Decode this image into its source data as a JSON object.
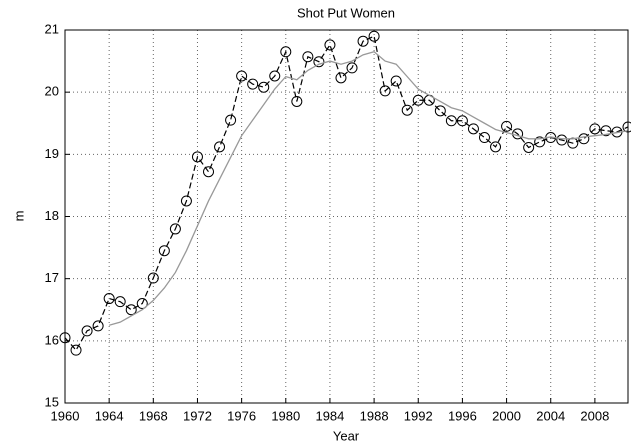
{
  "chart_data": {
    "type": "line",
    "title": "Shot Put Women",
    "xlabel": "Year",
    "ylabel": "m",
    "x": [
      1960,
      1961,
      1962,
      1963,
      1964,
      1965,
      1966,
      1967,
      1968,
      1969,
      1970,
      1971,
      1972,
      1973,
      1974,
      1975,
      1976,
      1977,
      1978,
      1979,
      1980,
      1981,
      1982,
      1983,
      1984,
      1985,
      1986,
      1987,
      1988,
      1989,
      1990,
      1991,
      1992,
      1993,
      1994,
      1995,
      1996,
      1997,
      1998,
      1999,
      2000,
      2001,
      2002,
      2003,
      2004,
      2005,
      2006,
      2007,
      2008,
      2009,
      2010,
      2011
    ],
    "series": [
      {
        "color": "#000000",
        "line": "dashed",
        "marker": "circle",
        "values": [
          16.05,
          15.85,
          16.16,
          16.24,
          16.68,
          16.63,
          16.5,
          16.6,
          17.01,
          17.45,
          17.8,
          18.25,
          18.96,
          18.72,
          19.12,
          19.55,
          20.26,
          20.13,
          20.08,
          20.26,
          20.65,
          19.85,
          20.57,
          20.49,
          20.76,
          20.23,
          20.39,
          20.82,
          20.9,
          20.02,
          20.18,
          19.71,
          19.87,
          19.87,
          19.7,
          19.54,
          19.54,
          19.41,
          19.27,
          19.12,
          19.45,
          19.33,
          19.11,
          19.2,
          19.27,
          19.23,
          19.18,
          19.25,
          19.41,
          19.38,
          19.36,
          19.44
        ]
      },
      {
        "color": "#999999",
        "line": "solid",
        "values": [
          null,
          null,
          null,
          null,
          16.25,
          16.3,
          16.4,
          16.5,
          16.65,
          16.85,
          17.1,
          17.45,
          17.85,
          18.25,
          18.6,
          18.95,
          19.3,
          19.55,
          19.8,
          20.05,
          20.25,
          20.2,
          20.35,
          20.45,
          20.5,
          20.45,
          20.5,
          20.6,
          20.65,
          20.5,
          20.45,
          20.25,
          20.05,
          19.95,
          19.85,
          19.75,
          19.7,
          19.6,
          19.5,
          19.4,
          19.35,
          19.3,
          19.25,
          19.25,
          19.28,
          19.25,
          19.25,
          19.28,
          19.3,
          19.32,
          19.35,
          19.38
        ]
      }
    ],
    "xlim": [
      1960,
      2011
    ],
    "ylim": [
      15,
      21
    ],
    "xticks": [
      1960,
      1964,
      1968,
      1972,
      1976,
      1980,
      1984,
      1988,
      1992,
      1996,
      2000,
      2004,
      2008
    ],
    "yticks": [
      15,
      16,
      17,
      18,
      19,
      20,
      21
    ],
    "grid": true
  }
}
